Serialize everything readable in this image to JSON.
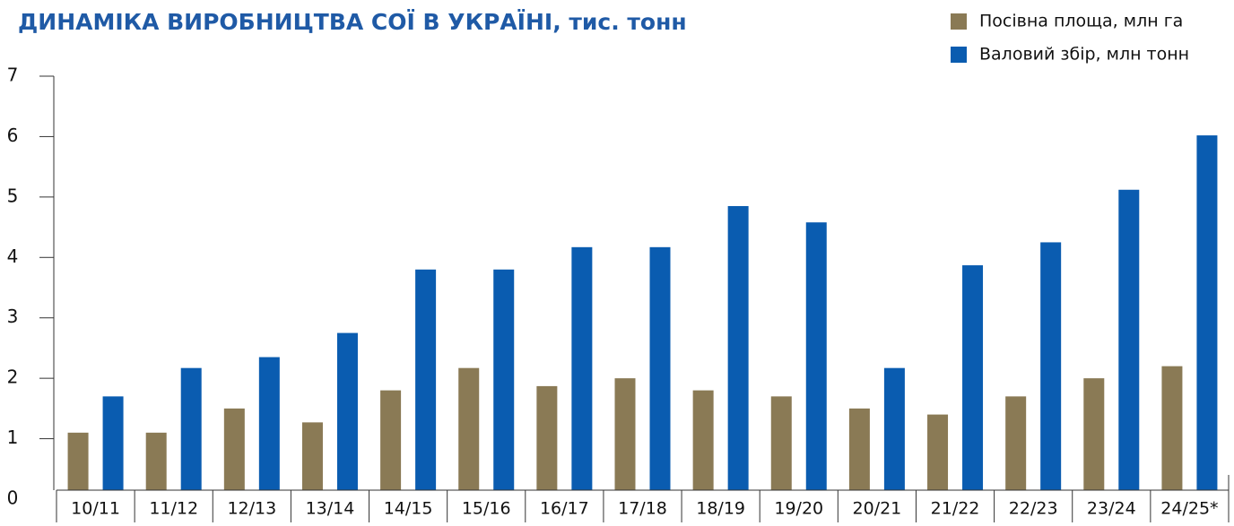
{
  "chart_data": {
    "type": "bar",
    "title": "ДИНАМІКА ВИРОБНИЦТВА СОЇ В УКРАЇНІ, тис. тонн",
    "categories": [
      "10/11",
      "11/12",
      "12/13",
      "13/14",
      "14/15",
      "15/16",
      "16/17",
      "17/18",
      "18/19",
      "19/20",
      "20/21",
      "21/22",
      "22/23",
      "23/24",
      "24/25*"
    ],
    "series": [
      {
        "name": "Посівна площа, млн га",
        "color": "#8a7a55",
        "values": [
          1.1,
          1.1,
          1.5,
          1.27,
          1.8,
          2.17,
          1.87,
          2.0,
          1.8,
          1.7,
          1.5,
          1.4,
          1.7,
          2.0,
          2.2
        ]
      },
      {
        "name": "Валовий збір, млн тонн",
        "color": "#0a5cb0",
        "values": [
          1.7,
          2.17,
          2.35,
          2.75,
          3.8,
          3.8,
          4.17,
          4.17,
          4.85,
          4.58,
          2.17,
          3.87,
          4.25,
          5.12,
          6.02
        ]
      }
    ],
    "ylim": [
      0,
      7
    ],
    "yticks": [
      0,
      1,
      2,
      3,
      4,
      5,
      6,
      7
    ],
    "legend": "top-right"
  }
}
